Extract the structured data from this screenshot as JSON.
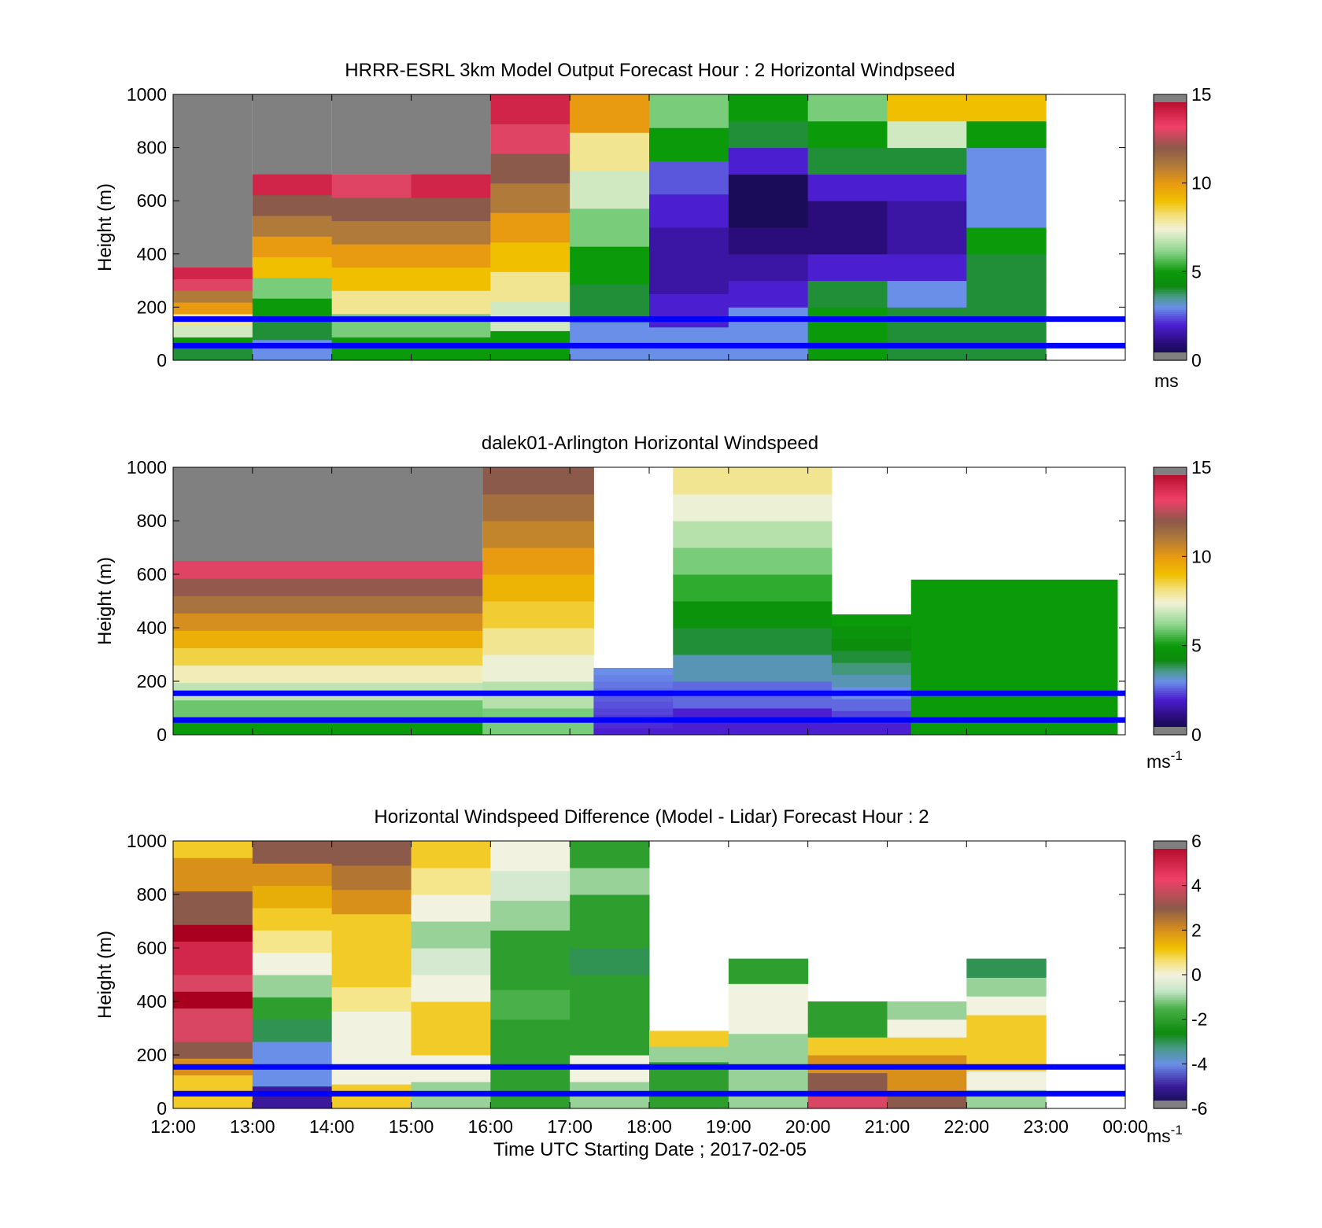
{
  "chart_data": [
    {
      "type": "heatmap",
      "title": "HRRR-ESRL 3km Model Output   Forecast Hour : 2 Horizontal Windpseed",
      "ylabel": "Height (m)",
      "ylim": [
        0,
        1000
      ],
      "yticks": [
        "0",
        "200",
        "400",
        "600",
        "800",
        "1000"
      ],
      "xlim_hours": [
        12,
        24
      ],
      "colorbar": {
        "min": 0,
        "max": 15,
        "ticks": [
          "0",
          "5",
          "10",
          "15"
        ],
        "unit": "ms",
        "palette": "speed"
      },
      "reference_lines_m": [
        155,
        55
      ],
      "columns": [
        {
          "hour": 12,
          "top_m": 350,
          "sampled_values": [
            4,
            5,
            7,
            8,
            10,
            11,
            13,
            14
          ]
        },
        {
          "hour": 13,
          "top_m": 700,
          "sampled_values": [
            3,
            4,
            5,
            6,
            9,
            10,
            11,
            12,
            14
          ]
        },
        {
          "hour": 14,
          "top_m": 700,
          "sampled_values": [
            5,
            6,
            8,
            9,
            10,
            11,
            12,
            13
          ]
        },
        {
          "hour": 15,
          "top_m": 700,
          "sampled_values": [
            5,
            6,
            8,
            9,
            10,
            11,
            12,
            14
          ]
        },
        {
          "hour": 16,
          "top_m": 1000,
          "sampled_values": [
            5,
            7,
            8,
            9,
            10,
            11,
            12,
            13,
            14
          ]
        },
        {
          "hour": 17,
          "top_m": 1000,
          "sampled_values": [
            3,
            4,
            5,
            6,
            7,
            8,
            10
          ]
        },
        {
          "hour": 18,
          "top_m": 1000,
          "sampled_values": [
            3,
            2,
            1.5,
            1.5,
            2,
            2.5,
            5,
            6
          ]
        },
        {
          "hour": 19,
          "top_m": 1000,
          "sampled_values": [
            3,
            3,
            2,
            1.5,
            1,
            0.5,
            0.5,
            2,
            4,
            5
          ]
        },
        {
          "hour": 20,
          "top_m": 1000,
          "sampled_values": [
            5,
            5,
            4,
            2,
            1,
            1,
            2,
            4,
            5,
            6
          ]
        },
        {
          "hour": 21,
          "top_m": 1000,
          "sampled_values": [
            4,
            4,
            3,
            2,
            1.5,
            1.5,
            2,
            4,
            7,
            9
          ]
        },
        {
          "hour": 22,
          "top_m": 1000,
          "sampled_values": [
            4,
            4,
            4,
            4,
            5,
            3,
            3,
            3,
            5,
            9
          ]
        }
      ]
    },
    {
      "type": "heatmap",
      "title": "dalek01-Arlington  Horizontal Windspeed",
      "ylabel": "Height (m)",
      "ylim": [
        0,
        1000
      ],
      "yticks": [
        "0",
        "200",
        "400",
        "600",
        "800",
        "1000"
      ],
      "xlim_hours": [
        12,
        24
      ],
      "colorbar": {
        "min": 0,
        "max": 15,
        "ticks": [
          "0",
          "5",
          "10",
          "15"
        ],
        "unit": "ms",
        "unit_exp": "-1",
        "palette": "speed"
      },
      "reference_lines_m": [
        155,
        55
      ],
      "profile_summary": [
        {
          "hour_start": 12,
          "hour_end": 15.9,
          "top_m": 650,
          "low_value": 5,
          "high_value": 13
        },
        {
          "hour_start": 15.9,
          "hour_end": 17.3,
          "top_m": 1000,
          "low_value": 6,
          "high_value": 12
        },
        {
          "hour_start": 17.3,
          "hour_end": 18.3,
          "top_m": 250,
          "low_value": 2,
          "high_value": 3
        },
        {
          "hour_start": 18.3,
          "hour_end": 20.3,
          "top_m": 1000,
          "low_value": 2,
          "high_value": 8
        },
        {
          "hour_start": 20.3,
          "hour_end": 21.3,
          "top_m": 450,
          "low_value": 2,
          "high_value": 5
        },
        {
          "hour_start": 21.3,
          "hour_end": 23.9,
          "top_m": 580,
          "low_value": 5,
          "high_value": 5
        }
      ]
    },
    {
      "type": "heatmap",
      "title": "Horizontal Windspeed Difference (Model - Lidar) Forecast Hour : 2",
      "ylabel": "Height (m)",
      "xlabel": "Time UTC  Starting Date ; 2017-02-05",
      "ylim": [
        0,
        1000
      ],
      "yticks": [
        "0",
        "200",
        "400",
        "600",
        "800",
        "1000"
      ],
      "xticks": [
        "12:00",
        "13:00",
        "14:00",
        "15:00",
        "16:00",
        "17:00",
        "18:00",
        "19:00",
        "20:00",
        "21:00",
        "22:00",
        "23:00",
        "00:00"
      ],
      "xlim_hours": [
        12,
        24
      ],
      "colorbar": {
        "min": -6,
        "max": 6,
        "ticks": [
          "-6",
          "-4",
          "-2",
          "0",
          "2",
          "4",
          "6"
        ],
        "unit": "ms",
        "unit_exp": "-1",
        "palette": "diff"
      },
      "reference_lines_m": [
        155,
        55
      ],
      "columns": [
        {
          "hour": 12,
          "top_m": 1000,
          "sampled_values": [
            1,
            1,
            2,
            3,
            4,
            4,
            6,
            4,
            5,
            5,
            6,
            3,
            3,
            2,
            2,
            1
          ]
        },
        {
          "hour": 13,
          "top_m": 1000,
          "sampled_values": [
            -5,
            -4,
            -4,
            -3,
            -2,
            -1,
            0,
            0.5,
            1,
            1.5,
            2,
            3
          ]
        },
        {
          "hour": 14,
          "top_m": 1000,
          "sampled_values": [
            1,
            0,
            0,
            0,
            0.5,
            1,
            1,
            1,
            2,
            2.5,
            3
          ]
        },
        {
          "hour": 15,
          "top_m": 1000,
          "sampled_values": [
            -1,
            0,
            1,
            1,
            0,
            -0.5,
            -1,
            0,
            0.5,
            1
          ]
        },
        {
          "hour": 16,
          "top_m": 1000,
          "sampled_values": [
            -2,
            -2,
            -2,
            -1.5,
            -2,
            -2,
            -1,
            -0.5,
            0
          ]
        },
        {
          "hour": 17,
          "top_m": 1000,
          "sampled_values": [
            -1,
            0,
            -2,
            -2,
            -2,
            -3,
            -2,
            -2,
            -1,
            -2
          ]
        },
        {
          "hour": 18,
          "top_m": 290,
          "sampled_values": [
            -2,
            -2,
            -2,
            -1,
            1
          ]
        },
        {
          "hour": 19,
          "top_m": 560,
          "sampled_values": [
            -1,
            -1,
            -1,
            0,
            0,
            -2
          ]
        },
        {
          "hour": 20,
          "top_m": 400,
          "sampled_values": [
            4,
            3,
            2,
            1,
            -2,
            -2
          ]
        },
        {
          "hour": 21,
          "top_m": 400,
          "sampled_values": [
            3,
            2,
            2,
            1,
            0,
            -1
          ]
        },
        {
          "hour": 22,
          "top_m": 560,
          "sampled_values": [
            -1,
            0,
            1,
            1,
            1,
            0,
            -1,
            -3
          ]
        }
      ]
    }
  ]
}
